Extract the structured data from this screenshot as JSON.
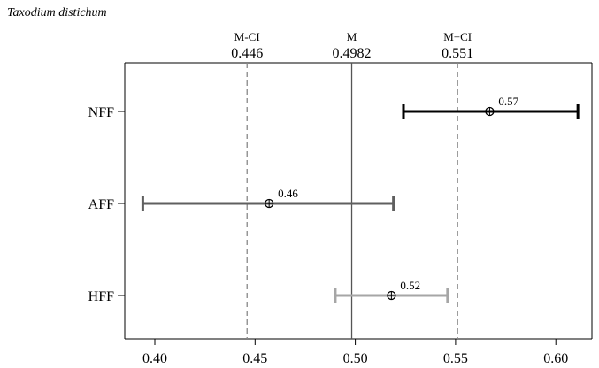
{
  "chart_data": {
    "type": "forest",
    "title": "Taxodium distichum",
    "xlim": [
      0.385,
      0.618
    ],
    "x_ticks": [
      0.4,
      0.45,
      0.5,
      0.55,
      0.6
    ],
    "x_tick_labels": [
      "0.40",
      "0.45",
      "0.50",
      "0.55",
      "0.60"
    ],
    "reference_lines": [
      {
        "label": "M-CI",
        "value": 0.446,
        "value_label": "0.446",
        "style": "dashed"
      },
      {
        "label": "M",
        "value": 0.4982,
        "value_label": "0.4982",
        "style": "solid"
      },
      {
        "label": "M+CI",
        "value": 0.551,
        "value_label": "0.551",
        "style": "dashed"
      }
    ],
    "categories": [
      "NFF",
      "AFF",
      "HFF"
    ],
    "points": [
      {
        "category": "NFF",
        "estimate": 0.567,
        "lower": 0.524,
        "upper": 0.611,
        "label": "0.57",
        "color": "#000000"
      },
      {
        "category": "AFF",
        "estimate": 0.457,
        "lower": 0.394,
        "upper": 0.519,
        "label": "0.46",
        "color": "#5f5f5f"
      },
      {
        "category": "HFF",
        "estimate": 0.518,
        "lower": 0.49,
        "upper": 0.546,
        "label": "0.52",
        "color": "#a6a6a6"
      }
    ]
  }
}
